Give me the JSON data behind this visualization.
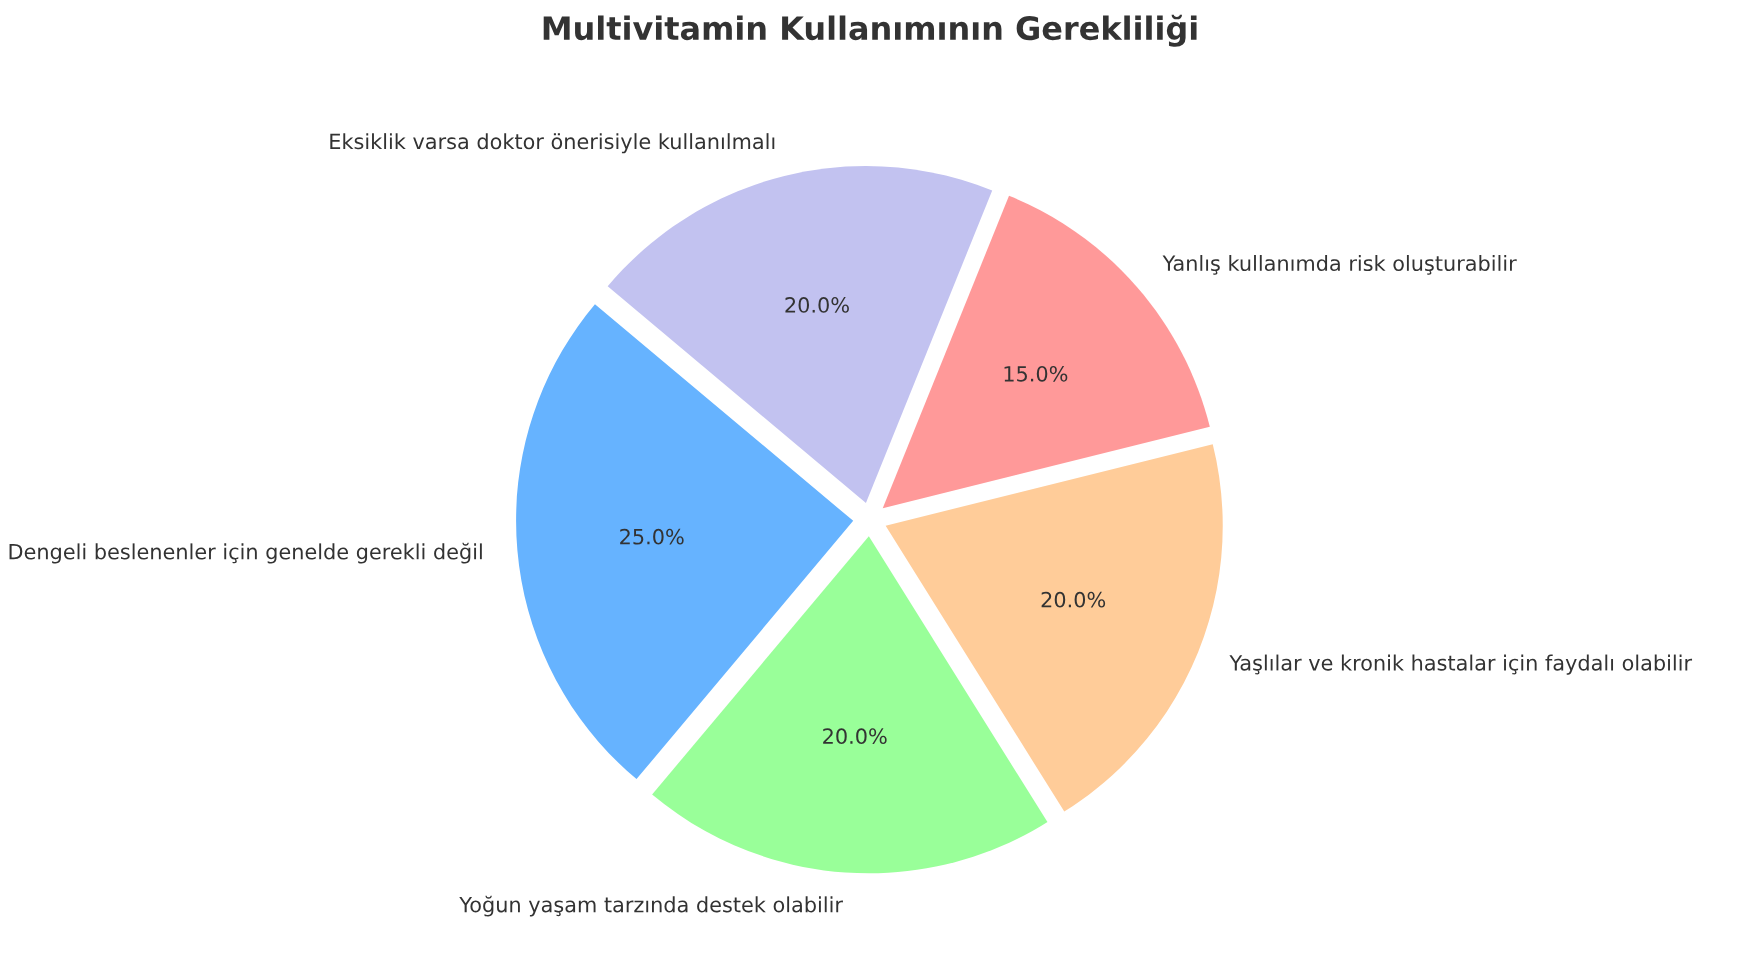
{
  "chart_data": {
    "type": "pie",
    "title": "Multivitamin Kullanımının Gerekliliği",
    "categories": [
      "Dengeli beslenenler için genelde gerekli değil",
      "Yoğun yaşam tarzında destek olabilir",
      "Yaşlılar ve kronik hastalar için faydalı olabilir",
      "Yanlış kullanımda risk oluşturabilir",
      "Eksiklik varsa doktor önerisiyle kullanılmalı"
    ],
    "values": [
      25,
      20,
      20,
      15,
      20
    ],
    "value_labels": [
      "25.0%",
      "20.0%",
      "20.0%",
      "15.0%",
      "20.0%"
    ],
    "colors": [
      "#66b3ff",
      "#99ff99",
      "#ffcc99",
      "#ff9999",
      "#c2c2f0"
    ],
    "legend": false
  }
}
